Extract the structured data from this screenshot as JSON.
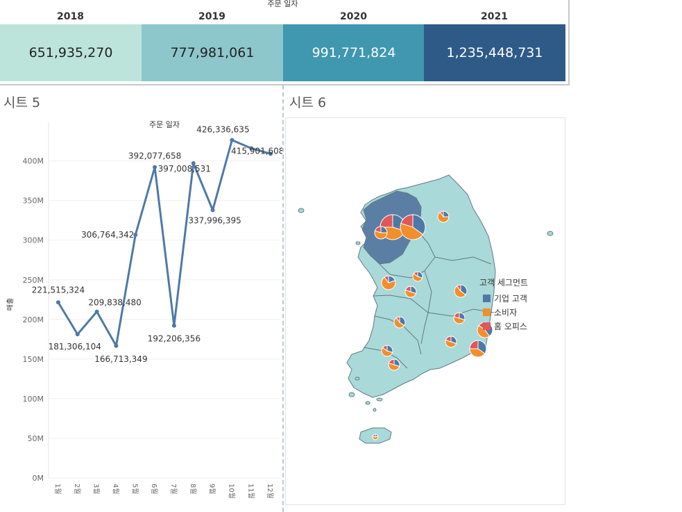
{
  "top": {
    "caption": "주문 일자",
    "cells": [
      {
        "year": "2018",
        "value": "651,935,270",
        "bg": "#bde4db",
        "fg": "#222222"
      },
      {
        "year": "2019",
        "value": "777,981,061",
        "bg": "#8dc7cc",
        "fg": "#222222"
      },
      {
        "year": "2020",
        "value": "991,771,824",
        "bg": "#3f97b0",
        "fg": "#ffffff"
      },
      {
        "year": "2021",
        "value": "1,235,448,731",
        "bg": "#2e5a87",
        "fg": "#ffffff"
      }
    ]
  },
  "sheet5": {
    "title": "시트 5"
  },
  "sheet6": {
    "title": "시트 6"
  },
  "chart_data": {
    "type": "line",
    "title": "주문 일자",
    "ylabel": "매출",
    "categories": [
      "1월",
      "2월",
      "3월",
      "4월",
      "5월",
      "6월",
      "7월",
      "8월",
      "9월",
      "10월",
      "11월",
      "12월"
    ],
    "values": [
      221515324,
      181306104,
      209838480,
      166713349,
      306764342,
      392077658,
      192206356,
      397008531,
      337996395,
      426336635,
      415901608,
      409000000
    ],
    "data_labels": [
      "221,515,324",
      "181,306,104",
      "209,838,480",
      "166,713,349",
      "306,764,342",
      "392,077,658",
      "192,206,356",
      "397,008,531",
      "337,996,395",
      "426,336,635",
      "415,901,608",
      ""
    ],
    "yticks": [
      0,
      50000000,
      100000000,
      150000000,
      200000000,
      250000000,
      300000000,
      350000000,
      400000000
    ],
    "ytick_labels": [
      "0M",
      "50M",
      "100M",
      "150M",
      "200M",
      "250M",
      "300M",
      "350M",
      "400M"
    ],
    "ylim": [
      0,
      440000000
    ],
    "grid": true,
    "line_color": "#4e79a7"
  },
  "map": {
    "legend_title": "고객 세그먼트",
    "legend_items": [
      {
        "label": "기업 고객",
        "color": "#4e79a7"
      },
      {
        "label": "소비자",
        "color": "#f28e2b"
      },
      {
        "label": "홈 오피스",
        "color": "#e15759"
      }
    ],
    "land_color": "#a9d9d8",
    "highlight_color": "#5b7fa4"
  }
}
